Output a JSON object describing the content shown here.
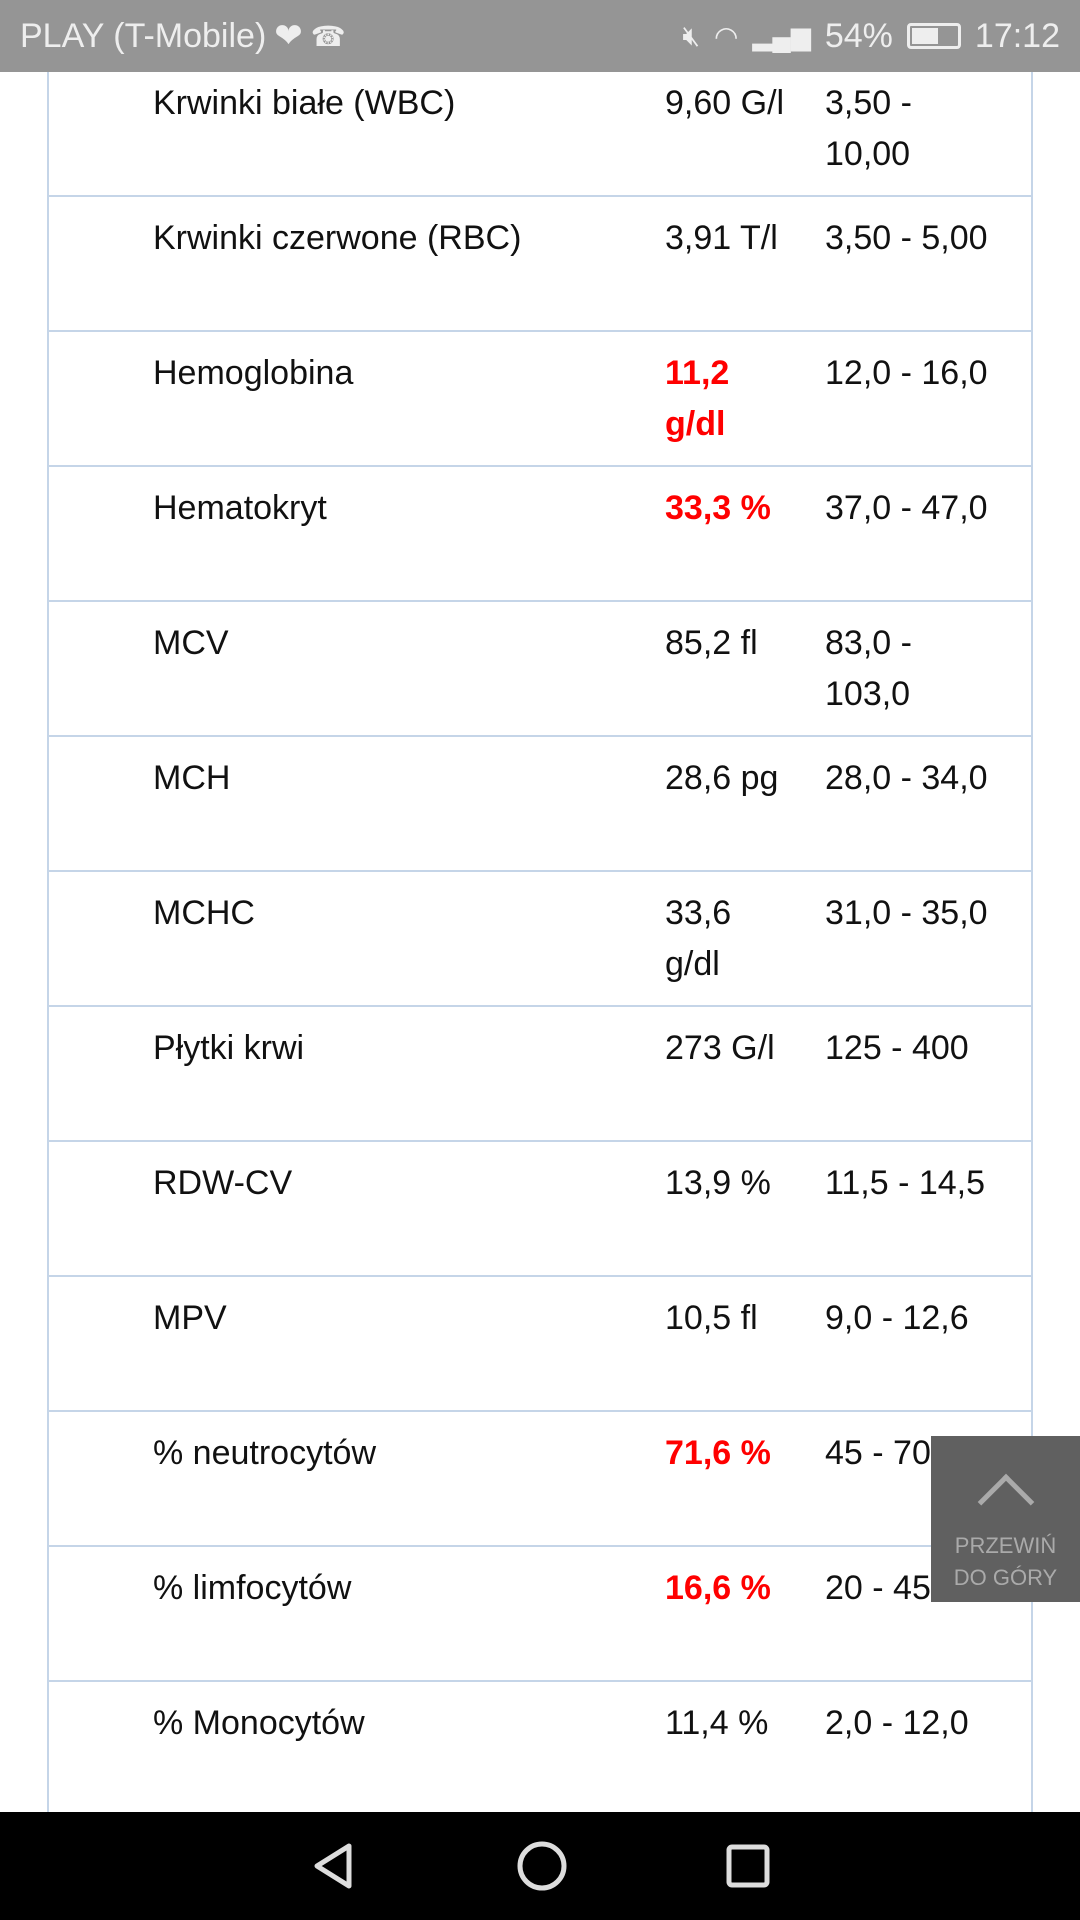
{
  "status_bar": {
    "carrier": "PLAY (T-Mobile)",
    "battery": "54%",
    "time": "17:12",
    "icons": [
      "heart-rate-icon",
      "missed-call-icon",
      "mute-icon",
      "wifi-icon",
      "signal-roaming-icon",
      "battery-icon"
    ]
  },
  "colors": {
    "abnormal": "#ff0000",
    "border": "#c5d5e8"
  },
  "rows": [
    {
      "name": "Krwinki białe (WBC)",
      "value": "9,60 G/l",
      "range": "3,50 - 10,00",
      "abnormal": false
    },
    {
      "name": "Krwinki czerwone (RBC)",
      "value": "3,91 T/l",
      "range": "3,50 - 5,00",
      "abnormal": false
    },
    {
      "name": "Hemoglobina",
      "value": "11,2 g/dl",
      "range": "12,0 - 16,0",
      "abnormal": true
    },
    {
      "name": "Hematokryt",
      "value": "33,3 %",
      "range": "37,0 - 47,0",
      "abnormal": true
    },
    {
      "name": "MCV",
      "value": "85,2 fl",
      "range": "83,0 - 103,0",
      "abnormal": false
    },
    {
      "name": "MCH",
      "value": "28,6 pg",
      "range": "28,0 - 34,0",
      "abnormal": false
    },
    {
      "name": "MCHC",
      "value": "33,6 g/dl",
      "range": "31,0 - 35,0",
      "abnormal": false
    },
    {
      "name": "Płytki krwi",
      "value": "273 G/l",
      "range": "125 - 400",
      "abnormal": false
    },
    {
      "name": "RDW-CV",
      "value": "13,9 %",
      "range": "11,5 - 14,5",
      "abnormal": false
    },
    {
      "name": "MPV",
      "value": "10,5 fl",
      "range": "9,0 - 12,6",
      "abnormal": false
    },
    {
      "name": "% neutrocytów",
      "value": "71,6 %",
      "range": "45 - 70",
      "abnormal": true
    },
    {
      "name": "% limfocytów",
      "value": "16,6 %",
      "range": "20 - 45",
      "abnormal": true
    },
    {
      "name": "% Monocytów",
      "value": "11,4 %",
      "range": "2,0 - 12,0",
      "abnormal": false
    }
  ],
  "scroll_top": {
    "label": "PRZEWIŃ DO GÓRY",
    "icon": "chevron-up-icon"
  },
  "nav_bar": {
    "icons": [
      "back-icon",
      "home-icon",
      "recents-icon"
    ]
  }
}
